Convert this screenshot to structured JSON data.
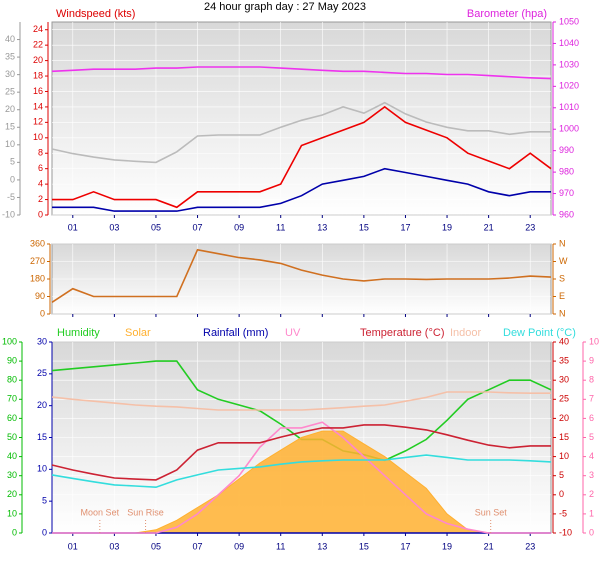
{
  "chart_data": [
    {
      "type": "line",
      "title": "24 hour graph day : 27 May 2023",
      "grid": true,
      "x": [
        0,
        1,
        2,
        3,
        4,
        5,
        6,
        7,
        8,
        9,
        10,
        11,
        12,
        13,
        14,
        15,
        16,
        17,
        18,
        19,
        20,
        21,
        22,
        23,
        24
      ],
      "xlim": [
        0,
        24
      ],
      "xticks": [
        {
          "value": 1,
          "label": "01"
        },
        {
          "value": 3,
          "label": "03"
        },
        {
          "value": 5,
          "label": "05"
        },
        {
          "value": 7,
          "label": "07"
        },
        {
          "value": 9,
          "label": "09"
        },
        {
          "value": 11,
          "label": "11"
        },
        13,
        15,
        17,
        19,
        21,
        23
      ],
      "axes": [
        {
          "id": "y",
          "label": "Windspeed (kts)",
          "color": "#dd0000",
          "lim": [
            0,
            25
          ],
          "ticks": [
            0,
            2,
            4,
            6,
            8,
            10,
            12,
            14,
            16,
            18,
            20,
            22,
            24
          ]
        },
        {
          "id": "y3",
          "color": "#999999",
          "lim": [
            -10,
            45
          ],
          "ticks": [
            -10,
            -5,
            0,
            5,
            10,
            15,
            20,
            25,
            30,
            35,
            40
          ]
        },
        {
          "id": "y2",
          "label": "Barometer (hpa)",
          "color": "#dd22dd",
          "lim": [
            960,
            1050
          ],
          "ticks": [
            960,
            970,
            980,
            990,
            1000,
            1010,
            1020,
            1030,
            1040,
            1050
          ]
        }
      ],
      "series": [
        {
          "color": "#bbbbbb",
          "axis": "y3",
          "values": [
            8.8,
            7.5,
            6.5,
            5.7,
            5.3,
            5,
            8,
            12.5,
            12.8,
            12.8,
            12.8,
            15,
            17,
            18.5,
            20.8,
            19,
            22,
            18.8,
            16.5,
            15,
            14,
            14,
            13,
            13.7,
            13.7
          ]
        },
        {
          "color": "#ee0000",
          "axis": "y",
          "values": [
            2,
            2,
            3,
            2,
            2,
            2,
            1,
            3,
            3,
            3,
            3,
            4,
            9,
            10,
            11,
            12,
            14,
            12,
            11,
            10,
            8,
            7,
            6,
            8,
            6
          ]
        },
        {
          "color": "#0000aa",
          "axis": "y",
          "values": [
            1,
            1,
            1,
            0.5,
            0.5,
            0.5,
            0.5,
            1,
            1,
            1,
            1,
            1.5,
            2.5,
            4,
            4.5,
            5,
            6,
            5.5,
            5,
            4.5,
            4,
            3,
            2.5,
            3,
            3
          ]
        },
        {
          "color": "#ee33ee",
          "axis": "y2",
          "values": [
            1027,
            1027.5,
            1028,
            1028,
            1028,
            1028.5,
            1028.5,
            1029,
            1029,
            1029,
            1029,
            1028.5,
            1028,
            1027.5,
            1027,
            1027,
            1026.5,
            1026,
            1026,
            1025.5,
            1025.5,
            1025,
            1024.5,
            1024,
            1023.6
          ]
        }
      ]
    },
    {
      "type": "line",
      "grid": true,
      "x": [
        0,
        1,
        2,
        3,
        4,
        5,
        6,
        7,
        8,
        9,
        10,
        11,
        12,
        13,
        14,
        15,
        16,
        17,
        18,
        19,
        20,
        21,
        22,
        23,
        24
      ],
      "xlim": [
        0,
        24
      ],
      "xticks": [
        {
          "value": 1,
          "label": "01"
        },
        {
          "value": 3,
          "label": "03"
        },
        {
          "value": 5,
          "label": "05"
        },
        {
          "value": 7,
          "label": "07"
        },
        {
          "value": 9,
          "label": "09"
        },
        {
          "value": 11,
          "label": "11"
        },
        13,
        15,
        17,
        19,
        21,
        23
      ],
      "axes": [
        {
          "id": "y",
          "color": "#cc6600",
          "lim": [
            0,
            360
          ],
          "ticks": [
            0,
            90,
            180,
            270,
            360
          ]
        },
        {
          "id": "y2",
          "color": "#cc6600",
          "lim": [
            0,
            360
          ],
          "ticks": [
            {
              "value": 0,
              "label": "N"
            },
            {
              "value": 90,
              "label": "E"
            },
            {
              "value": 180,
              "label": "S"
            },
            {
              "value": 270,
              "label": "W"
            },
            {
              "value": 360,
              "label": "N"
            }
          ]
        }
      ],
      "series": [
        {
          "color": "#d07020",
          "axis": "y",
          "values": [
            60,
            130,
            90,
            90,
            90,
            90,
            90,
            330,
            310,
            290,
            278,
            260,
            226,
            200,
            180,
            170,
            180,
            180,
            178,
            180,
            180,
            180,
            185,
            195,
            190
          ]
        }
      ]
    },
    {
      "type": "line",
      "grid": true,
      "x": [
        0,
        1,
        2,
        3,
        4,
        5,
        6,
        7,
        8,
        9,
        10,
        11,
        12,
        13,
        14,
        15,
        16,
        17,
        18,
        19,
        20,
        21,
        22,
        23,
        24
      ],
      "xlim": [
        0,
        24
      ],
      "xticks": [
        {
          "value": 1,
          "label": "01"
        },
        {
          "value": 3,
          "label": "03"
        },
        {
          "value": 5,
          "label": "05"
        },
        {
          "value": 7,
          "label": "07"
        },
        {
          "value": 9,
          "label": "09"
        },
        {
          "value": 11,
          "label": "11"
        },
        13,
        15,
        17,
        19,
        21,
        23
      ],
      "axes": [
        {
          "id": "y4",
          "color": "#00bb00",
          "lim": [
            0,
            100
          ],
          "ticks": [
            0,
            10,
            20,
            30,
            40,
            50,
            60,
            70,
            80,
            90,
            100
          ]
        },
        {
          "id": "y",
          "color": "#0000aa",
          "lim": [
            0,
            30
          ],
          "ticks": [
            0,
            5,
            10,
            15,
            20,
            25,
            30
          ]
        },
        {
          "id": "y2",
          "color": "#cc0000",
          "lim": [
            -10,
            40
          ],
          "ticks": [
            -10,
            -5,
            0,
            5,
            10,
            15,
            20,
            25,
            30,
            35,
            40
          ]
        },
        {
          "id": "y3",
          "color": "#ff66aa",
          "lim": [
            0,
            10
          ],
          "ticks": [
            0,
            1,
            2,
            3,
            4,
            5,
            6,
            7,
            8,
            9,
            10
          ]
        }
      ],
      "series": [
        {
          "name": "Humidity",
          "color": "#22cc22",
          "axis": "y4",
          "values": [
            85,
            86,
            87,
            88,
            89,
            90,
            90,
            75,
            70,
            67,
            64,
            57,
            49,
            49,
            43,
            41,
            38,
            43,
            49,
            59,
            70,
            75,
            80,
            80,
            75
          ]
        },
        {
          "name": "Solar",
          "color": "#ffb030",
          "axis": "y",
          "fill": true,
          "values": [
            0,
            0,
            0,
            0,
            0,
            0.5,
            2,
            4,
            6,
            8.5,
            11,
            13,
            15,
            16,
            16,
            14,
            12,
            9.5,
            7,
            3,
            0.5,
            0,
            0,
            0,
            0
          ]
        },
        {
          "name": "Rainfall (mm)",
          "color": "#0000aa",
          "axis": "y",
          "values": [
            0,
            0,
            0,
            0,
            0,
            0,
            0,
            0,
            0,
            0,
            0,
            0,
            0,
            0,
            0,
            0,
            0,
            0,
            0,
            0,
            0,
            0,
            0,
            0,
            0
          ]
        },
        {
          "name": "UV",
          "color": "#ff88cc",
          "axis": "y3",
          "values": [
            0,
            0,
            0,
            0,
            0,
            0,
            0.3,
            1,
            2,
            3,
            4.5,
            5.5,
            5.5,
            5.8,
            5,
            4,
            3,
            2,
            1,
            0.5,
            0.2,
            0,
            0,
            0,
            0
          ]
        },
        {
          "name": "Temperature (°C)",
          "color": "#cc2233",
          "axis": "y2",
          "values": [
            7.8,
            6.5,
            5.4,
            4.4,
            4.1,
            3.9,
            6.5,
            11.7,
            13.6,
            13.6,
            13.6,
            15.1,
            16.4,
            17.5,
            17.5,
            18.3,
            18.3,
            17.7,
            17,
            15.7,
            14.3,
            13,
            12.3,
            12.8,
            12.8
          ]
        },
        {
          "name": "Indoor",
          "color": "#f5c0a8",
          "axis": "y2",
          "values": [
            25.6,
            25,
            24.5,
            24,
            23.5,
            23.2,
            23,
            22.6,
            22.2,
            22.2,
            22.2,
            22.2,
            22.2,
            22.5,
            22.8,
            23.2,
            23.5,
            24.5,
            25.5,
            26.9,
            26.9,
            26.9,
            26.7,
            26.6,
            26.6
          ]
        },
        {
          "name": "Dew Point (°C)",
          "color": "#33dddd",
          "axis": "y2",
          "values": [
            5.2,
            4.3,
            3.4,
            2.6,
            2.3,
            2,
            3.9,
            5.2,
            6.5,
            6.9,
            7.3,
            8,
            8.6,
            8.9,
            9.1,
            9.1,
            9.1,
            9.8,
            10.4,
            9.8,
            9.1,
            9.1,
            9.1,
            8.9,
            8.6
          ]
        }
      ],
      "annotations": [
        {
          "text": "Moon Set",
          "x": 2.3
        },
        {
          "text": "Sun Rise",
          "x": 4.5
        },
        {
          "text": "Sun Set",
          "x": 21.1
        }
      ]
    }
  ]
}
